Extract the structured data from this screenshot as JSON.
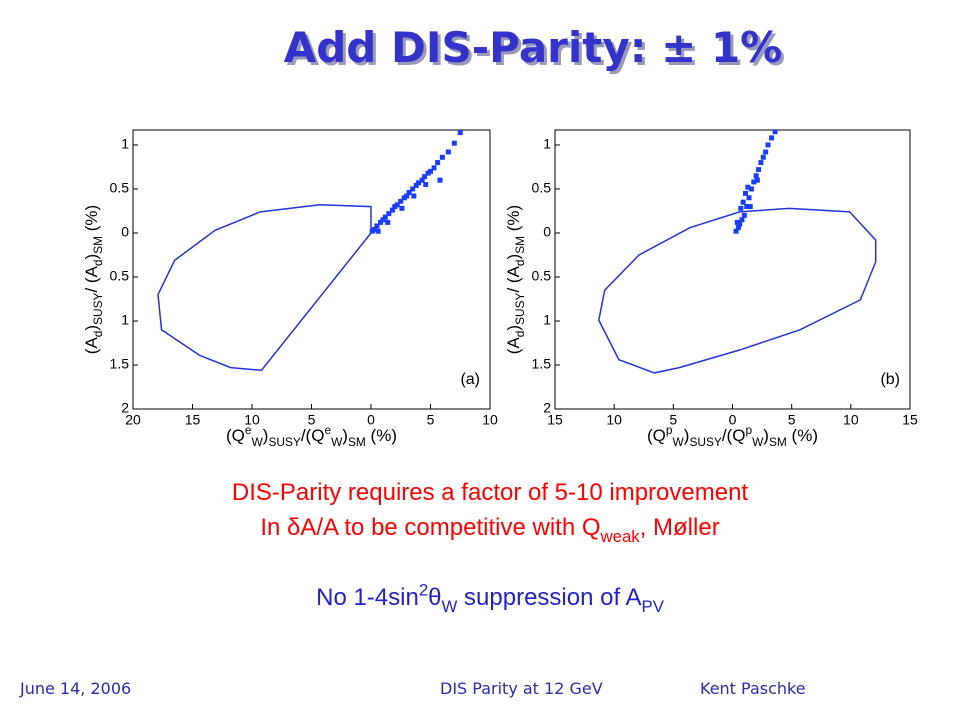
{
  "slide": {
    "title": "Add DIS-Parity: ± 1%",
    "line1": [
      {
        "text": "DIS-Parity requires a factor of  5-10 improvement",
        "pos": "base"
      }
    ],
    "line2": [
      {
        "text": "In δA/A to be competitive with Q",
        "pos": "base"
      },
      {
        "text": "weak",
        "pos": "sub"
      },
      {
        "text": ", Møller",
        "pos": "base"
      }
    ],
    "line3": [
      {
        "text": "No 1-4sin",
        "pos": "base"
      },
      {
        "text": "2",
        "pos": "sup"
      },
      {
        "text": "θ",
        "pos": "base"
      },
      {
        "text": "W",
        "pos": "sub"
      },
      {
        "text": " suppression of A",
        "pos": "base"
      },
      {
        "text": "PV",
        "pos": "sub"
      }
    ],
    "footer_left": "June 14, 2006",
    "footer_center": "DIS Parity at 12 GeV",
    "footer_right": "Kent Paschke"
  },
  "chart_data": [
    {
      "type": "scatter",
      "annotation": "(a)",
      "xlabel": [
        {
          "text": "(Q",
          "pos": "base"
        },
        {
          "text": "e",
          "pos": "sup"
        },
        {
          "text": "W",
          "pos": "sub"
        },
        {
          "text": ")",
          "pos": "base"
        },
        {
          "text": "SUSY",
          "pos": "sub"
        },
        {
          "text": "/(Q",
          "pos": "base"
        },
        {
          "text": "e",
          "pos": "sup"
        },
        {
          "text": "W",
          "pos": "sub"
        },
        {
          "text": ")",
          "pos": "base"
        },
        {
          "text": "SM",
          "pos": "sub"
        },
        {
          "text": "  (%)",
          "pos": "base"
        }
      ],
      "ylabel": [
        {
          "text": "(A",
          "pos": "base"
        },
        {
          "text": "d",
          "pos": "sub"
        },
        {
          "text": ")",
          "pos": "base"
        },
        {
          "text": "SUSY",
          "pos": "sub"
        },
        {
          "text": "/ (A",
          "pos": "base"
        },
        {
          "text": "d",
          "pos": "sub"
        },
        {
          "text": ")",
          "pos": "base"
        },
        {
          "text": "SM",
          "pos": "sub"
        },
        {
          "text": "   (%)",
          "pos": "base"
        }
      ],
      "xlim": [
        -20,
        10
      ],
      "ylim": [
        -2,
        1.17
      ],
      "xticks": [
        {
          "value": -20,
          "label": "20"
        },
        {
          "value": -15,
          "label": "15"
        },
        {
          "value": -10,
          "label": "10"
        },
        {
          "value": -5,
          "label": "5"
        },
        0,
        5,
        10
      ],
      "yticks": [
        1,
        0.5,
        0,
        {
          "value": -0.5,
          "label": "0.5"
        },
        {
          "value": -1,
          "label": "1"
        },
        {
          "value": -1.5,
          "label": "1.5"
        },
        {
          "value": -2,
          "label": "2"
        }
      ],
      "series": [
        {
          "mode": "line",
          "color": "#2233dd",
          "x": [
            0,
            0,
            -4.3,
            -9.3,
            -13.1,
            -16.5,
            -17.9,
            -17.6,
            -14.4,
            -11.8,
            -9.2,
            0
          ],
          "values": [
            0,
            0.3,
            0.32,
            0.24,
            0.03,
            -0.31,
            -0.7,
            -1.1,
            -1.39,
            -1.53,
            -1.56,
            0
          ]
        },
        {
          "mode": "markers",
          "color": "#1a3cff",
          "x": [
            0.1,
            0.3,
            0.5,
            0.8,
            1,
            1.2,
            1.5,
            1.8,
            2,
            2.2,
            2.5,
            2.8,
            3,
            3.2,
            3.5,
            3.8,
            4,
            4.3,
            4.5,
            4.8,
            5,
            5.3,
            5.6,
            6,
            6.5,
            7,
            7.5,
            0.6,
            1.4,
            2.6,
            3.6,
            4.6,
            5.8
          ],
          "values": [
            0.02,
            0.04,
            0.08,
            0.12,
            0.15,
            0.18,
            0.22,
            0.26,
            0.3,
            0.32,
            0.36,
            0.4,
            0.42,
            0.46,
            0.5,
            0.54,
            0.57,
            0.6,
            0.64,
            0.68,
            0.7,
            0.74,
            0.8,
            0.86,
            0.92,
            1.02,
            1.14,
            0.02,
            0.12,
            0.28,
            0.42,
            0.55,
            0.6
          ]
        }
      ]
    },
    {
      "type": "scatter",
      "annotation": "(b)",
      "xlabel": [
        {
          "text": "(Q",
          "pos": "base"
        },
        {
          "text": "p",
          "pos": "sup"
        },
        {
          "text": "W",
          "pos": "sub"
        },
        {
          "text": ")",
          "pos": "base"
        },
        {
          "text": "SUSY",
          "pos": "sub"
        },
        {
          "text": "/(Q",
          "pos": "base"
        },
        {
          "text": "p",
          "pos": "sup"
        },
        {
          "text": "W",
          "pos": "sub"
        },
        {
          "text": ")",
          "pos": "base"
        },
        {
          "text": "SM",
          "pos": "sub"
        },
        {
          "text": "  (%)",
          "pos": "base"
        }
      ],
      "ylabel": [
        {
          "text": "(A",
          "pos": "base"
        },
        {
          "text": "d",
          "pos": "sub"
        },
        {
          "text": ")",
          "pos": "base"
        },
        {
          "text": "SUSY",
          "pos": "sub"
        },
        {
          "text": "/ (A",
          "pos": "base"
        },
        {
          "text": "d",
          "pos": "sub"
        },
        {
          "text": ")",
          "pos": "base"
        },
        {
          "text": "SM",
          "pos": "sub"
        },
        {
          "text": "   (%)",
          "pos": "base"
        }
      ],
      "xlim": [
        -15,
        15
      ],
      "ylim": [
        -2,
        1.17
      ],
      "xticks": [
        {
          "value": -15,
          "label": "15"
        },
        {
          "value": -10,
          "label": "10"
        },
        {
          "value": -5,
          "label": "5"
        },
        0,
        5,
        10,
        15
      ],
      "yticks": [
        1,
        0.5,
        0,
        {
          "value": -0.5,
          "label": "0.5"
        },
        {
          "value": -1,
          "label": "1"
        },
        {
          "value": -1.5,
          "label": "1.5"
        },
        {
          "value": -2,
          "label": "2"
        }
      ],
      "series": [
        {
          "mode": "line",
          "color": "#2233dd",
          "x": [
            4.8,
            9.9,
            12.1,
            12.1,
            10.8,
            5.7,
            0.6,
            -4.5,
            -6.6,
            -9.6,
            -11.3,
            -10.8,
            -7.9,
            -3.6,
            0.6,
            4.8
          ],
          "values": [
            0.28,
            0.24,
            -0.08,
            -0.33,
            -0.76,
            -1.1,
            -1.33,
            -1.53,
            -1.59,
            -1.44,
            -0.99,
            -0.65,
            -0.25,
            0.06,
            0.24,
            0.28
          ]
        },
        {
          "mode": "markers",
          "color": "#1a3cff",
          "x": [
            0.3,
            0.5,
            0.6,
            0.8,
            1,
            0.7,
            1.2,
            0.9,
            1.4,
            1.1,
            1.6,
            1.3,
            1.8,
            2,
            2.2,
            2.4,
            2.6,
            2.8,
            3,
            3.3,
            3.6,
            0.4,
            1.5,
            2.1
          ],
          "values": [
            0.02,
            0.06,
            0.1,
            0.15,
            0.2,
            0.28,
            0.3,
            0.35,
            0.4,
            0.45,
            0.5,
            0.52,
            0.58,
            0.65,
            0.72,
            0.8,
            0.86,
            0.92,
            1,
            1.08,
            1.15,
            0.12,
            0.3,
            0.6
          ]
        }
      ]
    }
  ]
}
